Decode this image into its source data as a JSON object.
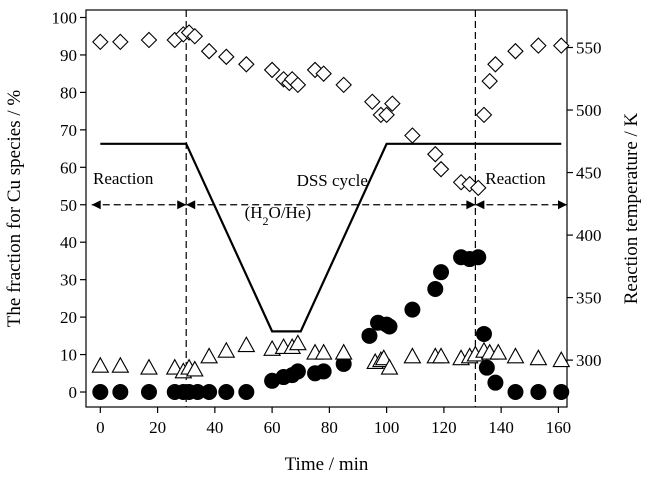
{
  "chart_data": {
    "type": "scatter",
    "xlabel": "Time / min",
    "ylabel": "The fraction for Cu species / %",
    "y2label": "Reaction temperature / K",
    "xlim": [
      -5,
      163
    ],
    "ylim": [
      -4,
      102
    ],
    "y2lim": [
      262.5,
      580
    ],
    "xticks": [
      0,
      20,
      40,
      60,
      80,
      100,
      120,
      140,
      160
    ],
    "yticks": [
      0,
      10,
      20,
      30,
      40,
      50,
      60,
      70,
      80,
      90,
      100
    ],
    "y2ticks": [
      300,
      350,
      400,
      450,
      500,
      550
    ],
    "grid": false,
    "legend": "none",
    "vlines": [
      30,
      131
    ],
    "annotations": [
      {
        "text": "Reaction",
        "x": 8,
        "y": 55.5
      },
      {
        "text": "DSS cycle",
        "x": 81,
        "y": 55
      },
      {
        "text": "(H",
        "x": 62,
        "y": 46.5,
        "sub": "2",
        "rest": "O/He)"
      },
      {
        "text": "Reaction",
        "x": 145,
        "y": 55.5
      }
    ],
    "arrows": [
      {
        "x1": -3,
        "x2": 30,
        "y": 50
      },
      {
        "x1": 30,
        "x2": 131,
        "y": 50
      },
      {
        "x1": 131,
        "x2": 163,
        "y": 50
      }
    ],
    "temperature": {
      "axis": "right",
      "x": [
        0,
        30,
        60,
        70,
        100,
        161
      ],
      "y": [
        473,
        473,
        323,
        323,
        473,
        473
      ]
    },
    "series": [
      {
        "marker": "diamond-open",
        "x": [
          0,
          7,
          17,
          26,
          29,
          31,
          33,
          38,
          44,
          51,
          60,
          64,
          66,
          67,
          69,
          75,
          78,
          85,
          95,
          98,
          100,
          102,
          109,
          117,
          119,
          126,
          129,
          132,
          134,
          136,
          138,
          145,
          153,
          161
        ],
        "y": [
          93.5,
          93.5,
          94,
          94,
          95.5,
          96,
          95,
          91,
          89.5,
          87.5,
          86,
          83.5,
          82.5,
          83.5,
          82,
          86,
          85,
          82,
          77.5,
          74,
          74,
          77,
          68.5,
          63.5,
          59.5,
          56,
          55.5,
          54.5,
          74,
          83,
          87.5,
          91,
          92.5,
          92.5
        ]
      },
      {
        "marker": "circle-filled",
        "x": [
          0,
          7,
          17,
          26,
          29,
          31,
          34,
          38,
          44,
          51,
          60,
          64,
          67,
          69,
          75,
          78,
          85,
          94,
          97,
          100,
          101,
          109,
          117,
          119,
          126,
          129,
          132,
          134,
          135,
          138,
          145,
          153,
          161
        ],
        "y": [
          0,
          0,
          0,
          0,
          0,
          0,
          0,
          0,
          0,
          0,
          3,
          4,
          4.5,
          5.5,
          5,
          5.5,
          7.5,
          15,
          18.5,
          18,
          17.5,
          22,
          27.5,
          32,
          36,
          35.5,
          36,
          15.5,
          6.5,
          2.5,
          0,
          0,
          0
        ]
      },
      {
        "marker": "triangle-open",
        "x": [
          0,
          7,
          17,
          26,
          29,
          31,
          33,
          38,
          44,
          51,
          60,
          64,
          67,
          69,
          75,
          78,
          85,
          96,
          98,
          99,
          101,
          109,
          117,
          119,
          126,
          129,
          131,
          134,
          136,
          139,
          145,
          153,
          161
        ],
        "y": [
          7,
          7,
          6.5,
          6.5,
          5.5,
          6.5,
          6,
          9.5,
          11,
          12.5,
          11.5,
          12,
          12,
          13,
          10.5,
          10.5,
          10.5,
          8,
          8.5,
          9,
          6.5,
          9.5,
          9.5,
          9.5,
          9,
          9.5,
          10,
          11,
          10.5,
          10.5,
          9.5,
          9,
          8.5
        ]
      }
    ]
  }
}
